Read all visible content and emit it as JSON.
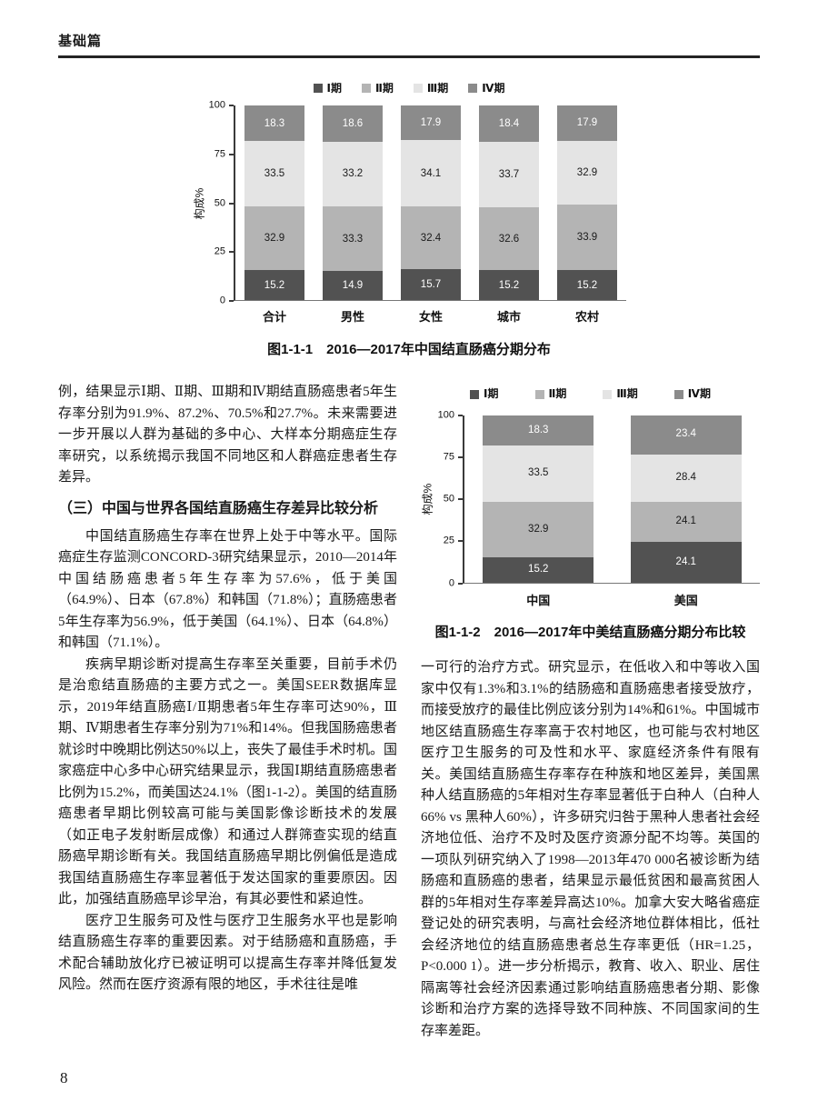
{
  "page": {
    "header": "基础篇",
    "page_number": "8"
  },
  "figure1": {
    "caption": "图1-1-1　2016—2017年中国结直肠癌分期分布"
  },
  "figure2": {
    "caption": "图1-1-2　2016—2017年中美结直肠癌分期分布比较"
  },
  "chart_data": [
    {
      "type": "bar",
      "stacked": true,
      "title": "图1-1-1 2016—2017年中国结直肠癌分期分布",
      "ylabel": "构成%",
      "ylim": [
        0,
        100
      ],
      "yticks": [
        0,
        25,
        50,
        75,
        100
      ],
      "grid": false,
      "legend_position": "top",
      "categories": [
        "合计",
        "男性",
        "女性",
        "城市",
        "农村"
      ],
      "series": [
        {
          "name": "Ⅰ期",
          "color": "#525252",
          "text_color": "#ffffff",
          "values": [
            15.2,
            14.9,
            15.7,
            15.2,
            15.2
          ]
        },
        {
          "name": "Ⅱ期",
          "color": "#b4b4b4",
          "text_color": "#1a1a1a",
          "values": [
            32.9,
            33.3,
            32.4,
            32.6,
            33.9
          ]
        },
        {
          "name": "Ⅲ期",
          "color": "#e4e4e4",
          "text_color": "#1a1a1a",
          "values": [
            33.5,
            33.2,
            34.1,
            33.7,
            32.9
          ]
        },
        {
          "name": "Ⅳ期",
          "color": "#8b8b8b",
          "text_color": "#ffffff",
          "values": [
            18.3,
            18.6,
            17.9,
            18.4,
            17.9
          ]
        }
      ]
    },
    {
      "type": "bar",
      "stacked": true,
      "title": "图1-1-2 2016—2017年中美结直肠癌分期分布比较",
      "ylabel": "构成%",
      "ylim": [
        0,
        100
      ],
      "yticks": [
        0,
        25,
        50,
        75,
        100
      ],
      "grid": false,
      "legend_position": "top",
      "categories": [
        "中国",
        "美国"
      ],
      "series": [
        {
          "name": "Ⅰ期",
          "color": "#525252",
          "text_color": "#ffffff",
          "values": [
            15.2,
            24.1
          ]
        },
        {
          "name": "Ⅱ期",
          "color": "#b4b4b4",
          "text_color": "#1a1a1a",
          "values": [
            32.9,
            24.1
          ]
        },
        {
          "name": "Ⅲ期",
          "color": "#e4e4e4",
          "text_color": "#1a1a1a",
          "values": [
            33.5,
            28.4
          ]
        },
        {
          "name": "Ⅳ期",
          "color": "#8b8b8b",
          "text_color": "#ffffff",
          "values": [
            18.3,
            23.4
          ]
        }
      ]
    }
  ],
  "left_column": {
    "para0": "例，结果显示Ⅰ期、Ⅱ期、Ⅲ期和Ⅳ期结直肠癌患者5年生存率分别为91.9%、87.2%、70.5%和27.7%。未来需要进一步开展以人群为基础的多中心、大样本分期癌症生存率研究，以系统揭示我国不同地区和人群癌症患者生存差异。",
    "heading": "（三）中国与世界各国结直肠癌生存差异比较分析",
    "para1": "中国结直肠癌生存率在世界上处于中等水平。国际癌症生存监测CONCORD-3研究结果显示，2010—2014年中国结肠癌患者5年生存率为57.6%，低于美国（64.9%）、日本（67.8%）和韩国（71.8%）；直肠癌患者5年生存率为56.9%，低于美国（64.1%）、日本（64.8%）和韩国（71.1%）。",
    "para2": "疾病早期诊断对提高生存率至关重要，目前手术仍是治愈结直肠癌的主要方式之一。美国SEER数据库显示，2019年结直肠癌Ⅰ/Ⅱ期患者5年生存率可达90%，Ⅲ期、Ⅳ期患者生存率分别为71%和14%。但我国肠癌患者就诊时中晚期比例达50%以上，丧失了最佳手术时机。国家癌症中心多中心研究结果显示，我国Ⅰ期结直肠癌患者比例为15.2%，而美国达24.1%（图1-1-2）。美国的结直肠癌患者早期比例较高可能与美国影像诊断技术的发展（如正电子发射断层成像）和通过人群筛查实现的结直肠癌早期诊断有关。我国结直肠癌早期比例偏低是造成我国结直肠癌生存率显著低于发达国家的重要原因。因此，加强结直肠癌早诊早治，有其必要性和紧迫性。",
    "para3": "医疗卫生服务可及性与医疗卫生服务水平也是影响结直肠癌生存率的重要因素。对于结肠癌和直肠癌，手术配合辅助放化疗已被证明可以提高生存率并降低复发风险。然而在医疗资源有限的地区，手术往往是唯"
  },
  "right_column": {
    "para1": "一可行的治疗方式。研究显示，在低收入和中等收入国家中仅有1.3%和3.1%的结肠癌和直肠癌患者接受放疗，而接受放疗的最佳比例应该分别为14%和61%。中国城市地区结直肠癌生存率高于农村地区，也可能与农村地区医疗卫生服务的可及性和水平、家庭经济条件有限有关。美国结直肠癌生存率存在种族和地区差异，美国黑种人结直肠癌的5年相对生存率显著低于白种人（白种人66% vs 黑种人60%），许多研究归咎于黑种人患者社会经济地位低、治疗不及时及医疗资源分配不均等。英国的一项队列研究纳入了1998—2013年470 000名被诊断为结肠癌和直肠癌的患者，结果显示最低贫困和最高贫困人群的5年相对生存率差异高达10%。加拿大安大略省癌症登记处的研究表明，与高社会经济地位群体相比，低社会经济地位的结直肠癌患者总生存率更低（HR=1.25，P<0.000 1）。进一步分析揭示，教育、收入、职业、居住隔离等社会经济因素通过影响结直肠癌患者分期、影像诊断和治疗方案的选择导致不同种族、不同国家间的生存率差距。"
  }
}
